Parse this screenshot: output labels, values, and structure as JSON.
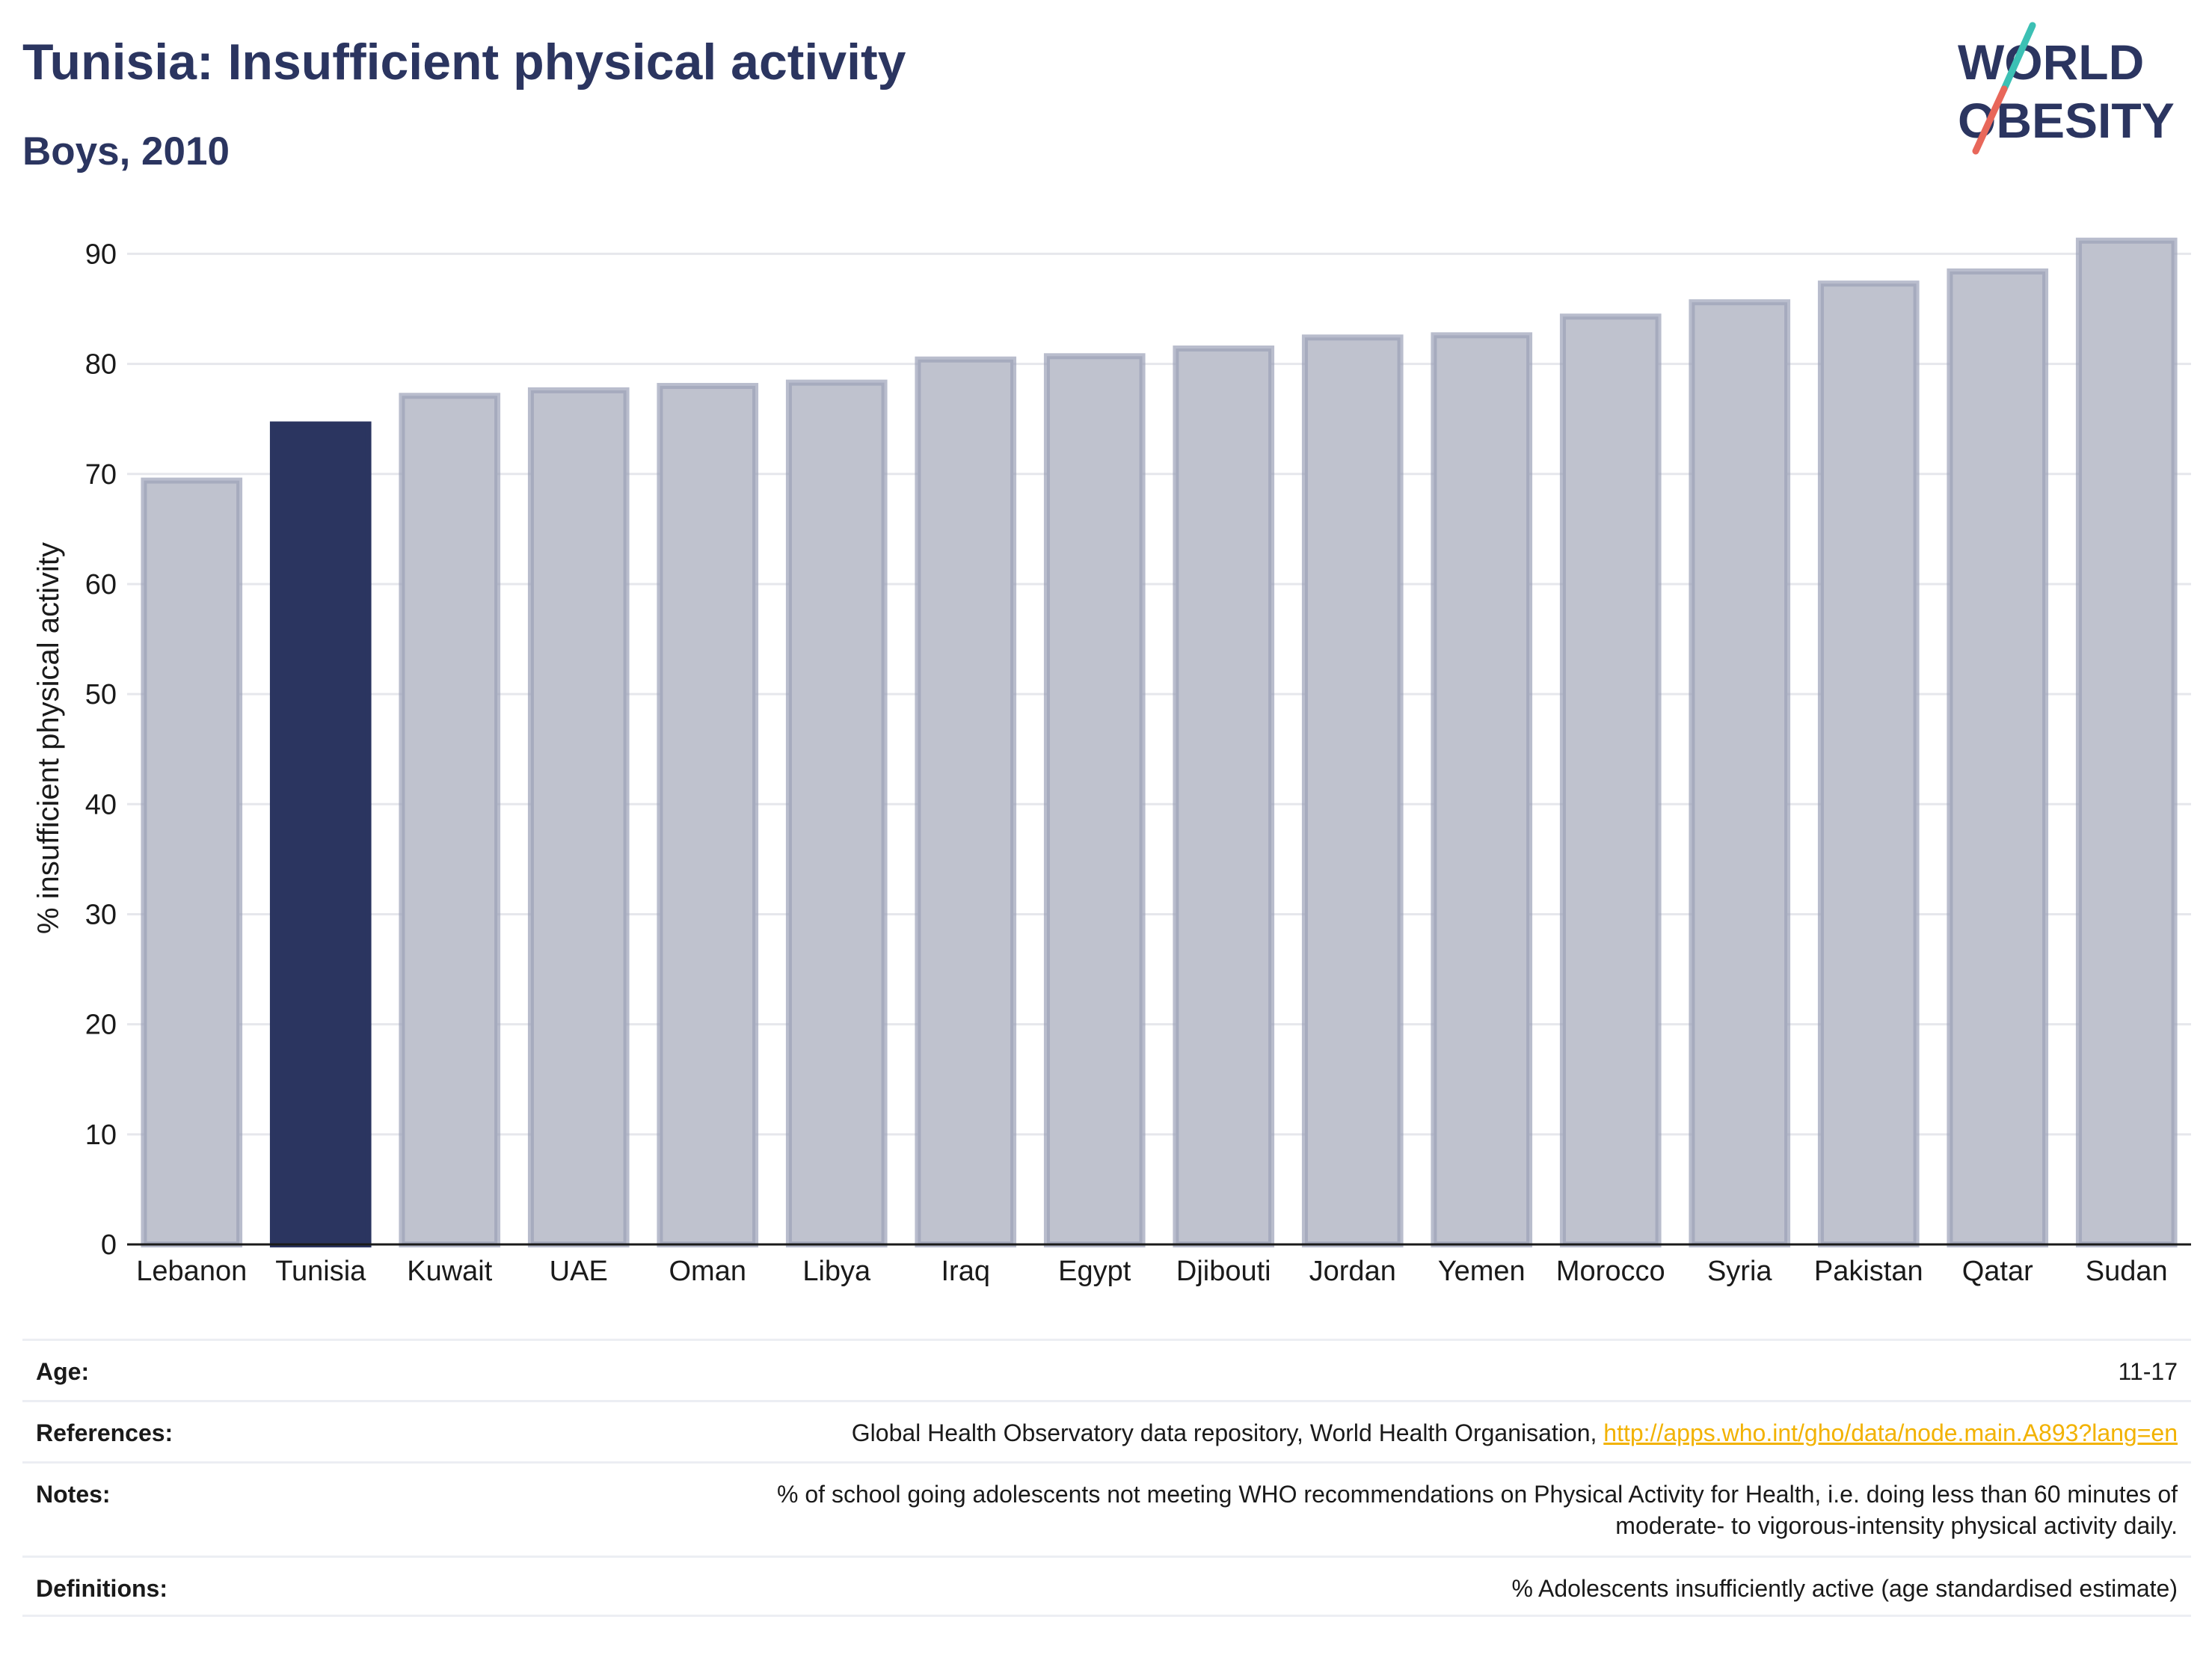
{
  "header": {
    "title": "Tunisia: Insufficient physical activity",
    "subtitle": "Boys, 2010"
  },
  "logo": {
    "line1": "WORLD",
    "line2": "OBESITY"
  },
  "chart_data": {
    "type": "bar",
    "categories": [
      "Lebanon",
      "Tunisia",
      "Kuwait",
      "UAE",
      "Oman",
      "Libya",
      "Iraq",
      "Egypt",
      "Djibouti",
      "Jordan",
      "Yemen",
      "Morocco",
      "Syria",
      "Pakistan",
      "Qatar",
      "Sudan"
    ],
    "values": [
      69.4,
      74.5,
      77.1,
      77.6,
      78.0,
      78.3,
      80.4,
      80.7,
      81.4,
      82.4,
      82.6,
      84.3,
      85.6,
      87.3,
      88.4,
      91.2
    ],
    "highlight": "Tunisia",
    "ylabel": "% insufficient physical activity",
    "ylim": [
      0,
      92
    ],
    "yticks": [
      0,
      10,
      20,
      30,
      40,
      50,
      60,
      70,
      80,
      90
    ],
    "grid": true,
    "colors": {
      "highlight": "#2b3560",
      "other_fill": "#bfc2ce",
      "other_stroke": "#9ba1b8"
    }
  },
  "info": {
    "age_label": "Age:",
    "age_value": "11-17",
    "references_label": "References:",
    "references_text": "Global Health Observatory data repository, World Health Organisation, ",
    "references_link": "http://apps.who.int/gho/data/node.main.A893?lang=en",
    "notes_label": "Notes:",
    "notes_line1": "% of school going adolescents not meeting WHO recommendations on Physical Activity for Health, i.e. doing less than 60 minutes of",
    "notes_line2": "moderate- to vigorous-intensity physical activity daily.",
    "definitions_label": "Definitions:",
    "definitions_value": "% Adolescents insufficiently active (age standardised estimate)"
  }
}
